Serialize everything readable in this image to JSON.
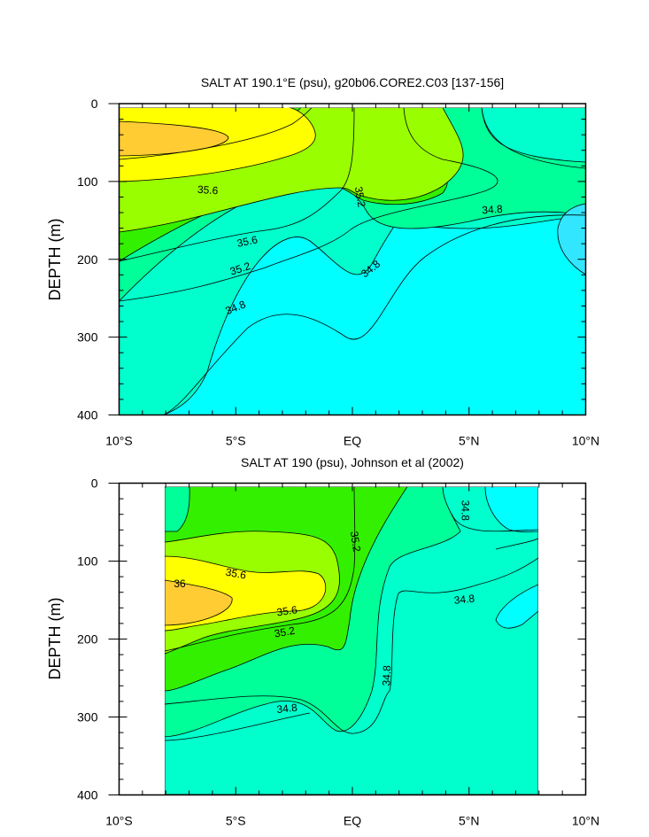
{
  "chart_data": [
    {
      "type": "contour",
      "title": "SALT AT 190.1°E (psu), g20b06.CORE2.C03 [137-156]",
      "ylabel": "DEPTH (m)",
      "xlabel": "",
      "xlim": [
        -10,
        10
      ],
      "ylim": [
        400,
        0
      ],
      "x_ticks": [
        -10,
        -5,
        0,
        5,
        10
      ],
      "x_tick_labels": [
        "10°S",
        "5°S",
        "EQ",
        "5°N",
        "10°N"
      ],
      "y_ticks": [
        0,
        100,
        200,
        300,
        400
      ],
      "y_tick_labels": [
        "0",
        "100",
        "200",
        "300",
        "400"
      ],
      "data_extent_x": [
        -10,
        10
      ],
      "data_extent_y": [
        5,
        400
      ],
      "levels": [
        34.6,
        34.8,
        35.0,
        35.2,
        35.4,
        35.6,
        35.8
      ],
      "level_colors": [
        "#33e6ff",
        "#00ffff",
        "#00ffcc",
        "#00ff99",
        "#33f000",
        "#99ff00",
        "#ffff00",
        "#ffcc33"
      ],
      "contour_labels": [
        {
          "text": "35.6",
          "x": -6.2,
          "y": 112,
          "angle": 4
        },
        {
          "text": "35.6",
          "x": -4.5,
          "y": 178,
          "angle": -12
        },
        {
          "text": "35.2",
          "x": -4.8,
          "y": 213,
          "angle": -18
        },
        {
          "text": "34.8",
          "x": -5.0,
          "y": 263,
          "angle": -22
        },
        {
          "text": "35.2",
          "x": 0.3,
          "y": 120,
          "angle": 80
        },
        {
          "text": "34.8",
          "x": 0.8,
          "y": 213,
          "angle": -38
        },
        {
          "text": "34.8",
          "x": 6.0,
          "y": 137,
          "angle": -4
        }
      ]
    },
    {
      "type": "contour",
      "title": "SALT AT 190 (psu), Johnson et al (2002)",
      "ylabel": "DEPTH (m)",
      "xlabel": "",
      "xlim": [
        -10,
        10
      ],
      "ylim": [
        400,
        0
      ],
      "x_ticks": [
        -10,
        -5,
        0,
        5,
        10
      ],
      "x_tick_labels": [
        "10°S",
        "5°S",
        "EQ",
        "5°N",
        "10°N"
      ],
      "y_ticks": [
        0,
        100,
        200,
        300,
        400
      ],
      "y_tick_labels": [
        "0",
        "100",
        "200",
        "300",
        "400"
      ],
      "data_extent_x": [
        -8,
        8
      ],
      "data_extent_y": [
        5,
        400
      ],
      "levels": [
        34.6,
        34.8,
        35.0,
        35.2,
        35.4,
        35.6,
        35.8,
        36.0
      ],
      "level_colors": [
        "#00ffff",
        "#00ffcc",
        "#00ff99",
        "#33f000",
        "#99ff00",
        "#ffff00",
        "#ffcc33"
      ],
      "contour_labels": [
        {
          "text": "36",
          "x": -7.4,
          "y": 130,
          "angle": 0
        },
        {
          "text": "35.6",
          "x": -5.0,
          "y": 117,
          "angle": 10
        },
        {
          "text": "35.6",
          "x": -2.8,
          "y": 165,
          "angle": -8
        },
        {
          "text": "35.2",
          "x": -2.9,
          "y": 192,
          "angle": -10
        },
        {
          "text": "34.8",
          "x": -2.8,
          "y": 290,
          "angle": -6
        },
        {
          "text": "35.2",
          "x": 0.1,
          "y": 75,
          "angle": 82
        },
        {
          "text": "34.8",
          "x": 1.5,
          "y": 247,
          "angle": -88
        },
        {
          "text": "34.8",
          "x": 4.8,
          "y": 35,
          "angle": 90
        },
        {
          "text": "34.8",
          "x": 4.8,
          "y": 150,
          "angle": -6
        }
      ]
    }
  ]
}
